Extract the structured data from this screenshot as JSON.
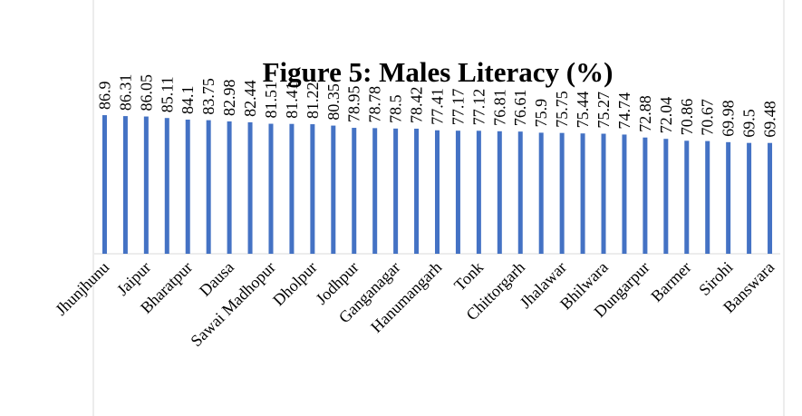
{
  "chart_data": {
    "type": "bar",
    "title": "Figure 5: Males Literacy (%)",
    "categories": [
      "Jhunjhunu",
      null,
      "Jaipur",
      null,
      "Bharatpur",
      null,
      "Dausa",
      null,
      "Sawai Madhopur",
      null,
      "Dholpur",
      null,
      "Jodhpur",
      null,
      "Ganganagar",
      null,
      "Hanumangarh",
      null,
      "Tonk",
      null,
      "Chittorgarh",
      null,
      "Jhalawar",
      null,
      "Bhilwara",
      null,
      "Dungarpur",
      null,
      "Barmer",
      null,
      "Sirohi",
      null,
      "Banswara"
    ],
    "values": [
      86.9,
      86.31,
      86.05,
      85.11,
      84.1,
      83.75,
      82.98,
      82.44,
      81.51,
      81.41,
      81.22,
      80.35,
      78.95,
      78.78,
      78.5,
      78.42,
      77.41,
      77.17,
      77.12,
      76.81,
      76.61,
      75.9,
      75.75,
      75.44,
      75.27,
      74.74,
      72.88,
      72.04,
      70.86,
      70.67,
      69.98,
      69.5,
      69.48
    ],
    "color": "#4472c4",
    "ylim": [
      0,
      100
    ]
  }
}
